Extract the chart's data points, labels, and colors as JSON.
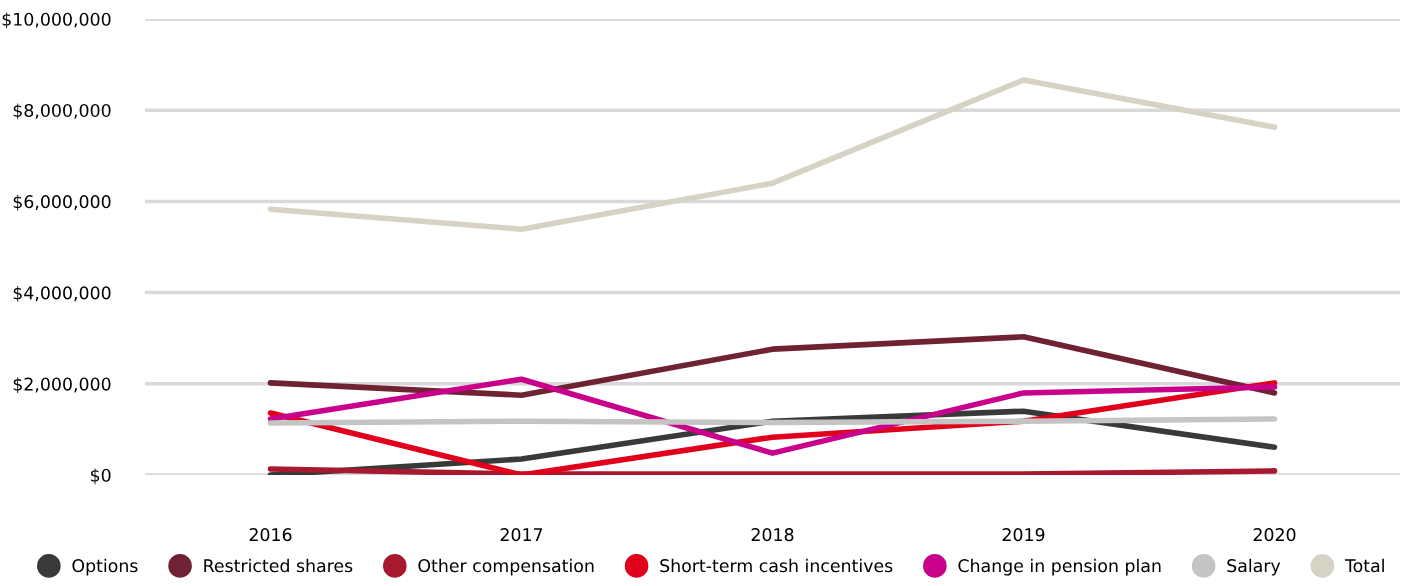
{
  "chart_data": {
    "type": "line",
    "categories": [
      "2016",
      "2017",
      "2018",
      "2019",
      "2020"
    ],
    "series": [
      {
        "name": "Options",
        "color": "#373a36",
        "values": [
          0,
          350000,
          1180000,
          1400000,
          610000
        ]
      },
      {
        "name": "Restricted shares",
        "color": "#6f2232",
        "values": [
          2020000,
          1750000,
          2760000,
          3030000,
          1800000
        ]
      },
      {
        "name": "Other compensation",
        "color": "#a6192e",
        "values": [
          130000,
          20000,
          20000,
          20000,
          90000
        ]
      },
      {
        "name": "Short-term cash incentives",
        "color": "#e0001b",
        "values": [
          1360000,
          0,
          830000,
          1180000,
          2020000
        ]
      },
      {
        "name": "Change in pension plan",
        "color": "#c8008a",
        "values": [
          1230000,
          2100000,
          480000,
          1800000,
          1930000
        ]
      },
      {
        "name": "Salary",
        "color": "#c4c4c4",
        "values": [
          1140000,
          1180000,
          1150000,
          1180000,
          1230000
        ]
      },
      {
        "name": "Total",
        "color": "#d6d2c4",
        "values": [
          5830000,
          5390000,
          6400000,
          8660000,
          7630000
        ]
      }
    ],
    "ylim": [
      0,
      10000000
    ],
    "yticks": [
      {
        "value": 0,
        "label": "$0"
      },
      {
        "value": 2000000,
        "label": "$2,000,000"
      },
      {
        "value": 4000000,
        "label": "$4,000,000"
      },
      {
        "value": 6000000,
        "label": "$6,000,000"
      },
      {
        "value": 8000000,
        "label": "$8,000,000"
      },
      {
        "value": 10000000,
        "label": "$10,000,000"
      }
    ],
    "grid": "y",
    "legend": "bottom",
    "marker": "none",
    "line_style": "solid"
  }
}
